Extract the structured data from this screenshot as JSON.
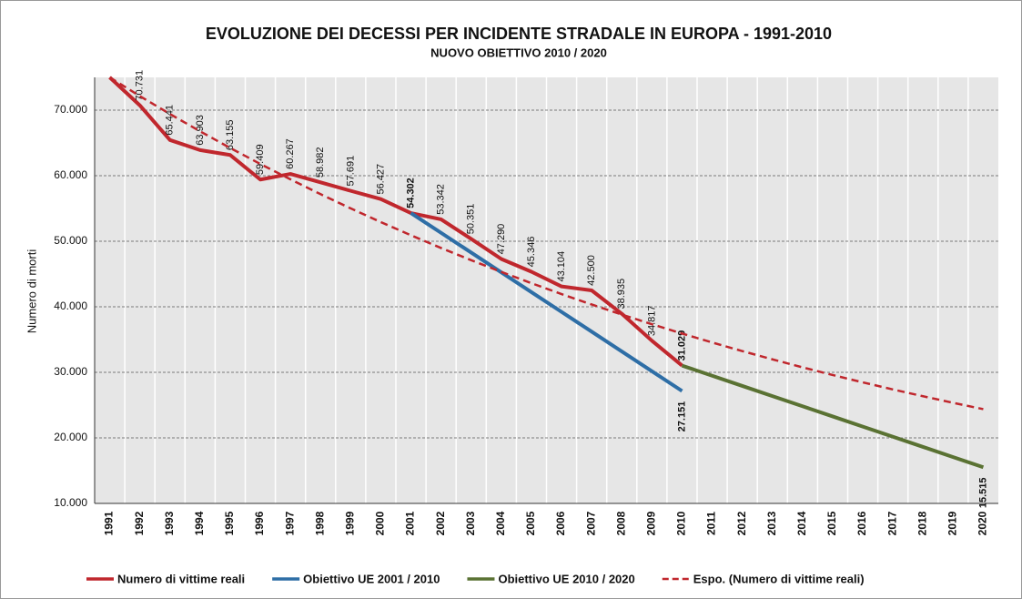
{
  "chart_data": {
    "type": "line",
    "title": "EVOLUZIONE DEI DECESSI PER INCIDENTE STRADALE IN EUROPA - 1991-2010",
    "subtitle": "NUOVO OBIETTIVO 2010 / 2020",
    "y_label": "Numero di morti",
    "categories": [
      "1991",
      "1992",
      "1993",
      "1994",
      "1995",
      "1996",
      "1997",
      "1998",
      "1999",
      "2000",
      "2001",
      "2002",
      "2003",
      "2004",
      "2005",
      "2006",
      "2007",
      "2008",
      "2009",
      "2010",
      "2011",
      "2012",
      "2013",
      "2014",
      "2015",
      "2016",
      "2017",
      "2018",
      "2019",
      "2020"
    ],
    "ylim": [
      10000,
      75000
    ],
    "yticks": [
      {
        "value": 10000,
        "label": "10.000"
      },
      {
        "value": 20000,
        "label": "20.000"
      },
      {
        "value": 30000,
        "label": "30.000"
      },
      {
        "value": 40000,
        "label": "40.000"
      },
      {
        "value": 50000,
        "label": "50.000"
      },
      {
        "value": 60000,
        "label": "60.000"
      },
      {
        "value": 70000,
        "label": "70.000"
      }
    ],
    "grid": true,
    "legend": "bottom",
    "series": [
      {
        "name": "Numero di vittime reali",
        "color": "#c0272d",
        "style": "solid",
        "values": [
          75000,
          70731,
          65441,
          63903,
          63155,
          59409,
          60267,
          58982,
          57691,
          56427,
          54302,
          53342,
          50351,
          47290,
          45346,
          43104,
          42500,
          38935,
          34817,
          31029,
          null,
          null,
          null,
          null,
          null,
          null,
          null,
          null,
          null,
          null
        ],
        "value_labels": [
          null,
          "70.731",
          "65.441",
          "63.903",
          "63.155",
          "59.409",
          "60.267",
          "58.982",
          "57.691",
          "56.427",
          null,
          "53.342",
          "50.351",
          "47.290",
          "45.346",
          "43.104",
          "42.500",
          "38.935",
          "34.817",
          null,
          null,
          null,
          null,
          null,
          null,
          null,
          null,
          null,
          null,
          null
        ]
      },
      {
        "name": "Obiettivo UE 2001 / 2010",
        "color": "#2e6ea6",
        "style": "solid",
        "values": [
          null,
          null,
          null,
          null,
          null,
          null,
          null,
          null,
          null,
          null,
          54302,
          51285,
          48268,
          45251,
          42234,
          39218,
          36201,
          33184,
          30168,
          27151,
          null,
          null,
          null,
          null,
          null,
          null,
          null,
          null,
          null,
          null
        ],
        "value_labels": [
          null,
          null,
          null,
          null,
          null,
          null,
          null,
          null,
          null,
          null,
          "54.302",
          null,
          null,
          null,
          null,
          null,
          null,
          null,
          null,
          "27.151",
          null,
          null,
          null,
          null,
          null,
          null,
          null,
          null,
          null,
          null
        ]
      },
      {
        "name": "Obiettivo UE 2010 / 2020",
        "color": "#5a7233",
        "style": "solid",
        "values": [
          null,
          null,
          null,
          null,
          null,
          null,
          null,
          null,
          null,
          null,
          null,
          null,
          null,
          null,
          null,
          null,
          null,
          null,
          null,
          31029,
          29478,
          27926,
          26375,
          24823,
          23272,
          21721,
          20169,
          18618,
          17066,
          15515
        ],
        "value_labels": [
          null,
          null,
          null,
          null,
          null,
          null,
          null,
          null,
          null,
          null,
          null,
          null,
          null,
          null,
          null,
          null,
          null,
          null,
          null,
          "31.029",
          null,
          null,
          null,
          null,
          null,
          null,
          null,
          null,
          null,
          "15.515"
        ]
      },
      {
        "name": "Espo. (Numero di vittime reali)",
        "color": "#c0272d",
        "style": "dashed",
        "values": [
          75000,
          72150,
          69410,
          66770,
          64230,
          61790,
          59440,
          57180,
          55010,
          52920,
          50910,
          48970,
          47110,
          45320,
          43600,
          41940,
          40350,
          38810,
          37340,
          35920,
          34550,
          33240,
          31980,
          30760,
          29590,
          28470,
          27390,
          26350,
          25350,
          24380
        ]
      }
    ]
  }
}
